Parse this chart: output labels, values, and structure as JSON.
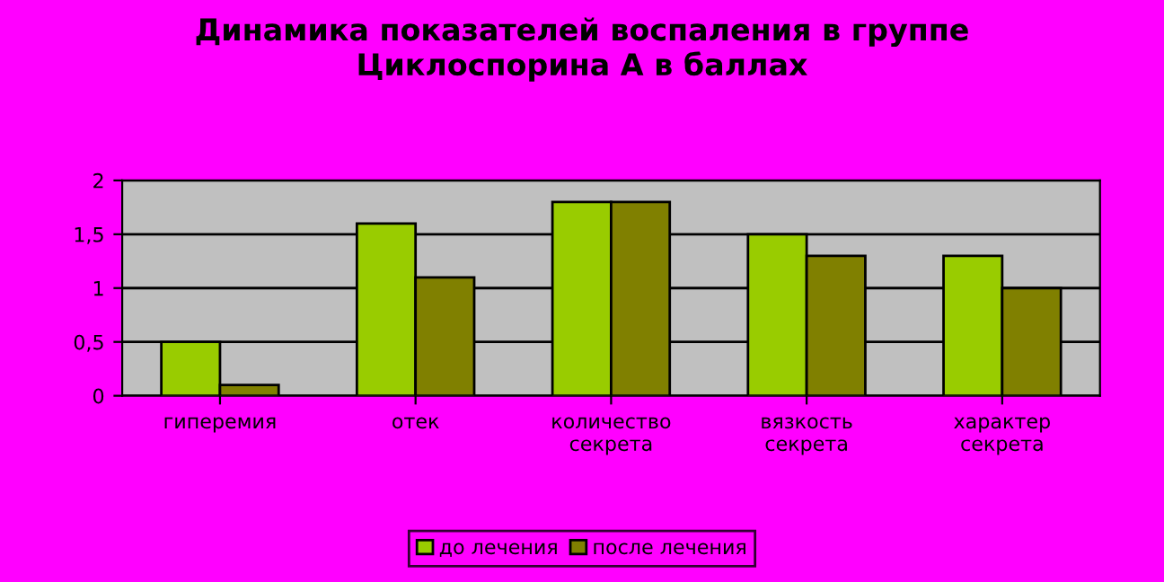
{
  "chart_data": {
    "type": "bar",
    "title": "Динамика показателей воспаления в группе\nЦиклоспорина А в баллах",
    "categories": [
      "гиперемия",
      "отек",
      "количество\nсекрета",
      "вязкость\nсекрета",
      "характер\nсекрета"
    ],
    "series": [
      {
        "name": "до лечения",
        "color": "#99cc00",
        "values": [
          0.5,
          1.6,
          1.8,
          1.5,
          1.3
        ]
      },
      {
        "name": "после лечения",
        "color": "#808000",
        "values": [
          0.1,
          1.1,
          1.8,
          1.3,
          1.0
        ]
      }
    ],
    "ylim": [
      0,
      2
    ],
    "yticks": [
      0,
      {
        "value": 0.5,
        "label": "0,5"
      },
      1,
      {
        "value": 1.5,
        "label": "1,5"
      },
      2
    ],
    "grid": "y",
    "legend": "bottom"
  }
}
